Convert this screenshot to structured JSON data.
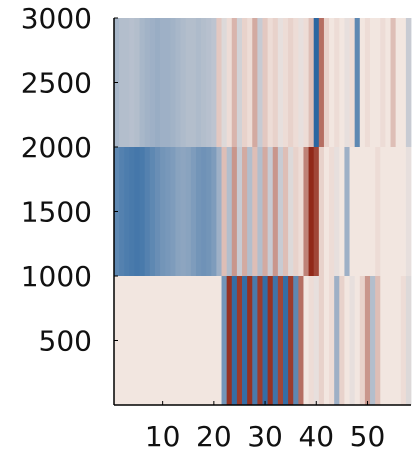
{
  "chart_data": {
    "type": "heatmap",
    "title": "",
    "xlabel": "",
    "ylabel": "",
    "xlim": [
      0.5,
      58.5
    ],
    "ylim": [
      0,
      3000
    ],
    "x_ticks": [
      {
        "value": 10,
        "label": "10"
      },
      {
        "value": 20,
        "label": "20"
      },
      {
        "value": 30,
        "label": "30"
      },
      {
        "value": 40,
        "label": "40"
      },
      {
        "value": 50,
        "label": "50"
      }
    ],
    "y_ticks": [
      {
        "value": 500,
        "label": "500"
      },
      {
        "value": 1000,
        "label": "1000"
      },
      {
        "value": 1500,
        "label": "1500"
      },
      {
        "value": 2000,
        "label": "2000"
      },
      {
        "value": 2500,
        "label": "2500"
      },
      {
        "value": 3000,
        "label": "3000"
      }
    ],
    "colormap": {
      "negative": "#1f5f9e",
      "neutral": "#f2e6e0",
      "positive": "#8c1e0e"
    },
    "blocks": [
      {
        "name": "block-top",
        "rows": [
          2000,
          3000
        ],
        "column_values": [
          -0.35,
          -0.3,
          -0.3,
          -0.28,
          -0.3,
          -0.35,
          -0.38,
          -0.4,
          -0.42,
          -0.4,
          -0.4,
          -0.38,
          -0.35,
          -0.32,
          -0.3,
          -0.3,
          -0.32,
          -0.3,
          -0.28,
          -0.25,
          0.15,
          -0.1,
          0.05,
          0.25,
          -0.15,
          0.1,
          0.05,
          0.3,
          -0.2,
          0.15,
          0.05,
          0.1,
          -0.05,
          0.05,
          0.1,
          0.05,
          -0.05,
          0.05,
          0.2,
          -0.95,
          0.6,
          0.1,
          0.0,
          0.05,
          0.0,
          -0.05,
          0.05,
          -0.7,
          0.0,
          0.05,
          0.0,
          0.0,
          0.05,
          0.0,
          0.2,
          0.0,
          0.0,
          -0.2
        ]
      },
      {
        "name": "block-middle",
        "rows": [
          1000,
          2000
        ],
        "column_values": [
          -0.7,
          -0.75,
          -0.78,
          -0.8,
          -0.82,
          -0.8,
          -0.75,
          -0.7,
          -0.65,
          -0.6,
          -0.58,
          -0.55,
          -0.5,
          -0.48,
          -0.5,
          -0.55,
          -0.6,
          -0.62,
          -0.6,
          -0.55,
          -0.4,
          0.2,
          -0.3,
          0.4,
          -0.2,
          0.3,
          -0.3,
          0.2,
          -0.3,
          0.3,
          -0.2,
          0.4,
          -0.2,
          0.2,
          -0.1,
          0.1,
          0.05,
          0.5,
          0.95,
          0.8,
          0.1,
          0.0,
          0.05,
          -0.05,
          0.0,
          -0.4,
          0.0,
          0.0,
          0.0,
          0.0,
          0.0,
          0.05,
          0.0,
          0.0,
          0.0,
          0.0,
          0.0,
          -0.05
        ]
      },
      {
        "name": "block-bottom",
        "rows": [
          0,
          1000
        ],
        "column_values": [
          0.0,
          0.0,
          0.0,
          0.0,
          0.0,
          0.0,
          0.0,
          0.0,
          0.0,
          0.0,
          0.0,
          0.0,
          0.0,
          0.0,
          0.0,
          0.0,
          0.0,
          0.0,
          0.0,
          0.0,
          0.0,
          -0.6,
          0.9,
          -0.9,
          0.85,
          -0.9,
          0.9,
          -0.8,
          0.85,
          -0.9,
          0.9,
          -0.85,
          0.8,
          -0.9,
          0.85,
          -0.7,
          0.6,
          0.0,
          0.05,
          -0.05,
          0.1,
          0.0,
          0.05,
          -0.4,
          0.1,
          0.0,
          -0.05,
          0.0,
          0.1,
          0.4,
          -0.3,
          0.2,
          0.0,
          0.0,
          0.0,
          0.0,
          0.05,
          -0.1
        ]
      }
    ],
    "grid": false
  }
}
